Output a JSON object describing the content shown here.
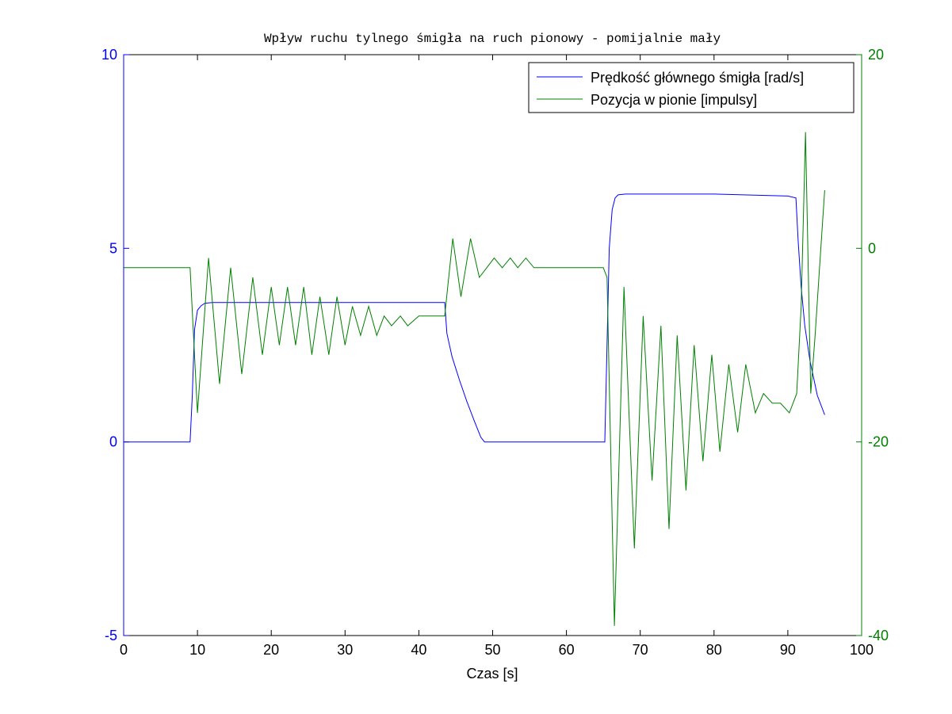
{
  "chart_data": {
    "type": "line",
    "title": "Wpływ ruchu tylnego śmigła na ruch pionowy - pomijalnie mały",
    "xlabel": "Czas [s]",
    "ylabel_left": "",
    "ylabel_right": "",
    "xlim": [
      0,
      100
    ],
    "ylim_left": [
      -5,
      10
    ],
    "ylim_right": [
      -40,
      20
    ],
    "x_ticks": [
      "0",
      "10",
      "20",
      "30",
      "40",
      "50",
      "60",
      "70",
      "80",
      "90",
      "100"
    ],
    "y_left_ticks": [
      "-5",
      "0",
      "5",
      "10"
    ],
    "y_right_ticks": [
      "-40",
      "-20",
      "0",
      "20"
    ],
    "grid": false,
    "legend_position": "top-right",
    "colors": {
      "left_axis": "#0000ff",
      "right_axis": "#008000",
      "frame": "#000000"
    },
    "series": [
      {
        "name": "Prędkość głównego śmigła [rad/s]",
        "axis": "left",
        "color": "#0000ff",
        "x": [
          0,
          9.0,
          9.3,
          9.6,
          10.0,
          10.5,
          11.0,
          12.0,
          14.0,
          20.0,
          30.0,
          40.0,
          43.5,
          43.8,
          44.5,
          45.5,
          46.5,
          47.5,
          48.4,
          48.9,
          55.0,
          65.2,
          65.5,
          65.8,
          66.2,
          66.6,
          67.0,
          68.0,
          70.0,
          80.0,
          90.0,
          91.1,
          91.4,
          91.8,
          92.3,
          93.0,
          94.0,
          95.0
        ],
        "y": [
          0,
          0,
          1.2,
          2.9,
          3.4,
          3.52,
          3.58,
          3.6,
          3.6,
          3.6,
          3.6,
          3.6,
          3.6,
          2.8,
          2.2,
          1.6,
          1.05,
          0.55,
          0.12,
          0,
          0,
          0,
          2.5,
          5.0,
          6.0,
          6.3,
          6.38,
          6.4,
          6.4,
          6.4,
          6.35,
          6.3,
          5.2,
          4.0,
          3.0,
          2.1,
          1.2,
          0.7
        ]
      },
      {
        "name": "Pozycja w pionie [impulsy]",
        "axis": "right",
        "color": "#008000",
        "x": [
          0,
          9.0,
          10.0,
          11.5,
          13.0,
          14.5,
          16.0,
          17.5,
          18.8,
          20.0,
          21.1,
          22.2,
          23.3,
          24.4,
          25.5,
          26.6,
          27.8,
          28.9,
          30.0,
          31.0,
          32.1,
          33.2,
          34.3,
          35.3,
          36.3,
          37.5,
          38.5,
          40.0,
          41.5,
          43.5,
          44.6,
          45.7,
          47.0,
          48.2,
          49.2,
          50.2,
          51.3,
          52.4,
          53.4,
          54.5,
          55.6,
          57.0,
          58.0,
          65.0,
          65.5,
          66.5,
          67.8,
          69.2,
          70.4,
          71.6,
          72.8,
          73.9,
          75.0,
          76.2,
          77.3,
          78.5,
          79.7,
          80.8,
          82.0,
          83.2,
          84.3,
          85.6,
          86.7,
          87.9,
          89.0,
          90.2,
          91.2,
          91.8,
          92.4,
          93.1,
          93.7,
          94.3,
          95.0
        ],
        "y": [
          -2,
          -2,
          -17,
          -1,
          -14,
          -2,
          -13,
          -3,
          -11,
          -4,
          -10,
          -4,
          -10,
          -4,
          -11,
          -5,
          -11,
          -5,
          -10,
          -6,
          -9,
          -6,
          -9,
          -7,
          -8,
          -7,
          -8,
          -7,
          -7,
          -7,
          1,
          -5,
          1,
          -3,
          -2,
          -1,
          -2,
          -1,
          -2,
          -1,
          -2,
          -2,
          -2,
          -2,
          -3,
          -39,
          -4,
          -31,
          -7,
          -24,
          -8,
          -29,
          -9,
          -25,
          -10,
          -22,
          -11,
          -21,
          -12,
          -19,
          -12,
          -17,
          -15,
          -16,
          -16,
          -17,
          -15,
          -6,
          12,
          -15,
          -9,
          -2,
          6
        ]
      }
    ]
  }
}
